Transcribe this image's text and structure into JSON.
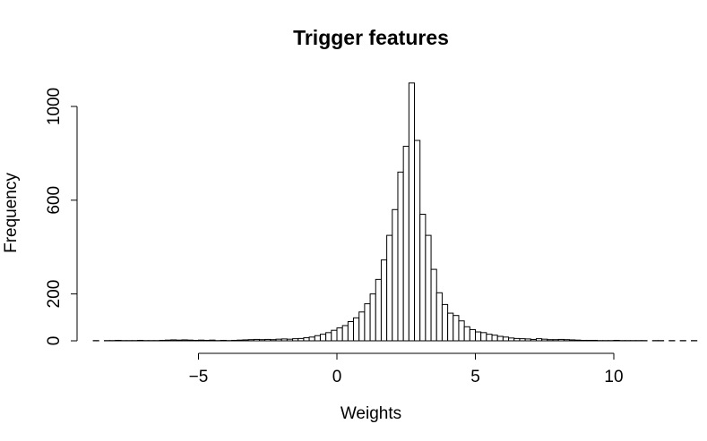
{
  "chart_data": {
    "type": "bar",
    "title": "Trigger features",
    "xlabel": "Weights",
    "ylabel": "Frequency",
    "xlim": [
      -9.2,
      11.2
    ],
    "ylim": [
      0,
      1100
    ],
    "x_ticks": [
      -5,
      0,
      5,
      10
    ],
    "x_tick_labels": [
      "−5",
      "0",
      "5",
      "10"
    ],
    "y_ticks": [
      0,
      200,
      600,
      1000
    ],
    "y_tick_labels": [
      "0",
      "200",
      "600",
      "1000"
    ],
    "bin_width": 0.2,
    "bins_start": -8.8,
    "values": [
      1,
      0,
      1,
      1,
      2,
      1,
      1,
      1,
      2,
      1,
      1,
      1,
      2,
      3,
      4,
      3,
      4,
      3,
      2,
      3,
      2,
      3,
      1,
      2,
      1,
      2,
      3,
      4,
      5,
      6,
      5,
      6,
      5,
      7,
      8,
      7,
      9,
      10,
      13,
      16,
      22,
      28,
      35,
      45,
      55,
      65,
      82,
      98,
      123,
      158,
      200,
      262,
      345,
      450,
      560,
      720,
      830,
      1100,
      855,
      540,
      450,
      305,
      205,
      155,
      118,
      108,
      85,
      60,
      48,
      38,
      35,
      28,
      24,
      19,
      16,
      12,
      10,
      9,
      8,
      6,
      9,
      7,
      5,
      5,
      6,
      5,
      4,
      3,
      2,
      2,
      2,
      1,
      1,
      1,
      2,
      1,
      1,
      1,
      1,
      1,
      0,
      1,
      1,
      0,
      1,
      0,
      1,
      0,
      1,
      0
    ]
  }
}
